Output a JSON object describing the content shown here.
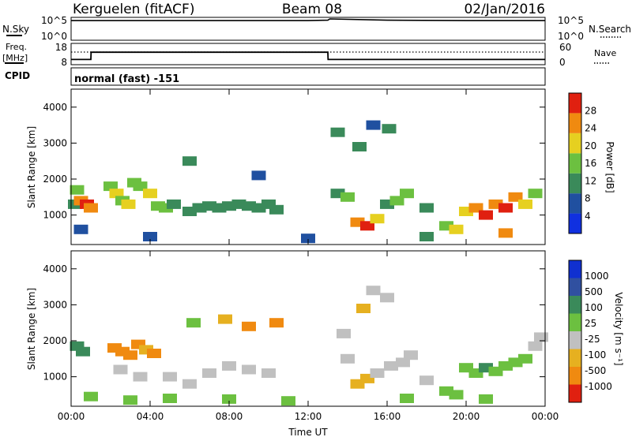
{
  "header": {
    "station": "Kerguelen (fitACF)",
    "beam": "Beam 08",
    "date": "02/Jan/2016"
  },
  "top_panels": {
    "sky_label": "N.Sky",
    "search_label": "N.Search",
    "sky_ticks": [
      "10^5",
      "10^0"
    ],
    "search_ticks": [
      "10^5",
      "10^0"
    ],
    "freq_label_1": "Freq.",
    "freq_label_2": "[MHz]",
    "freq_ticks": [
      "18",
      "8"
    ],
    "nave_label": "Nave",
    "nave_ticks": [
      "60",
      "0"
    ],
    "cpid_label": "CPID",
    "cpid_value": "normal (fast) -151"
  },
  "axes": {
    "ylabel": "Slant Range [km]",
    "xlabel": "Time UT",
    "y_ticks": [
      "1000",
      "2000",
      "3000",
      "4000"
    ],
    "x_ticks": [
      "00:00",
      "04:00",
      "08:00",
      "12:00",
      "16:00",
      "20:00",
      "00:00"
    ]
  },
  "colorbars": {
    "power": {
      "label": "Power [dB]",
      "ticks": [
        "4",
        "8",
        "12",
        "16",
        "20",
        "24",
        "28"
      ],
      "colors": [
        "#1030e0",
        "#2050a0",
        "#3a8a5a",
        "#6cc040",
        "#e6d020",
        "#f08a10",
        "#e02010"
      ]
    },
    "velocity": {
      "label": "Velocity [m s⁻¹]",
      "ticks": [
        "1000",
        "500",
        "100",
        "25",
        "-25",
        "-100",
        "-500",
        "-1000"
      ],
      "colors": [
        "#1030d0",
        "#3050a0",
        "#3a8a5a",
        "#6cc040",
        "#c0c0c0",
        "#e6b020",
        "#f08a10",
        "#e02010"
      ]
    }
  },
  "chart_data": [
    {
      "type": "line",
      "title": "N.Sky / N.Search",
      "x": [
        0,
        1,
        2,
        4,
        8,
        12,
        13,
        13.1,
        16,
        20,
        24
      ],
      "series": [
        {
          "name": "N.Sky",
          "values": [
            4.6,
            4.6,
            4.6,
            4.6,
            4.6,
            4.6,
            4.7,
            5.0,
            4.7,
            4.6,
            4.6
          ]
        }
      ],
      "ylim": [
        0,
        5
      ]
    },
    {
      "type": "line",
      "title": "Freq. / Nave",
      "x": [
        0,
        1,
        1.01,
        13,
        13.01,
        24
      ],
      "series": [
        {
          "name": "Freq.",
          "values": [
            10,
            10,
            14,
            14,
            10,
            10
          ]
        },
        {
          "name": "Nave",
          "values": [
            48,
            48,
            48,
            48,
            48,
            48
          ]
        }
      ],
      "ylim": [
        8,
        18
      ]
    },
    {
      "type": "heatmap",
      "title": "Power [dB]",
      "xlabel": "Time UT",
      "ylabel": "Slant Range [km]",
      "xlim": [
        0,
        24
      ],
      "ylim": [
        180,
        4500
      ],
      "cells": [
        [
          0.2,
          1300,
          2
        ],
        [
          0.5,
          1400,
          5
        ],
        [
          0.8,
          1300,
          6
        ],
        [
          1.0,
          1200,
          5
        ],
        [
          0.3,
          1700,
          3
        ],
        [
          2.0,
          1800,
          3
        ],
        [
          2.3,
          1600,
          4
        ],
        [
          2.6,
          1400,
          3
        ],
        [
          2.9,
          1300,
          4
        ],
        [
          3.2,
          1900,
          3
        ],
        [
          3.5,
          1800,
          3
        ],
        [
          4.0,
          1600,
          4
        ],
        [
          4.4,
          1250,
          3
        ],
        [
          4.8,
          1200,
          3
        ],
        [
          5.2,
          1300,
          2
        ],
        [
          6.0,
          1100,
          2
        ],
        [
          6.5,
          1200,
          2
        ],
        [
          7.0,
          1250,
          2
        ],
        [
          7.5,
          1200,
          2
        ],
        [
          8.0,
          1250,
          2
        ],
        [
          8.5,
          1300,
          2
        ],
        [
          9.0,
          1250,
          2
        ],
        [
          9.5,
          1200,
          2
        ],
        [
          10.0,
          1300,
          2
        ],
        [
          10.4,
          1150,
          2
        ],
        [
          13.5,
          1600,
          2
        ],
        [
          14.0,
          1500,
          3
        ],
        [
          14.5,
          800,
          5
        ],
        [
          15.0,
          700,
          6
        ],
        [
          15.5,
          900,
          4
        ],
        [
          16.0,
          1300,
          2
        ],
        [
          16.5,
          1400,
          3
        ],
        [
          17.0,
          1600,
          3
        ],
        [
          18.0,
          1200,
          2
        ],
        [
          19.0,
          700,
          3
        ],
        [
          19.5,
          600,
          4
        ],
        [
          20.0,
          1100,
          4
        ],
        [
          20.5,
          1200,
          5
        ],
        [
          21.0,
          1000,
          6
        ],
        [
          21.5,
          1300,
          5
        ],
        [
          22.0,
          1200,
          6
        ],
        [
          22.5,
          1500,
          5
        ],
        [
          23.0,
          1300,
          4
        ],
        [
          23.5,
          1600,
          3
        ],
        [
          22.0,
          500,
          5
        ],
        [
          13.5,
          3300,
          2
        ],
        [
          14.6,
          2900,
          2
        ],
        [
          15.3,
          3500,
          1
        ],
        [
          16.1,
          3400,
          2
        ],
        [
          6.0,
          2500,
          2
        ],
        [
          9.5,
          2100,
          1
        ],
        [
          0.5,
          600,
          1
        ],
        [
          4.0,
          400,
          1
        ],
        [
          12.0,
          350,
          1
        ],
        [
          18.0,
          400,
          2
        ]
      ]
    },
    {
      "type": "heatmap",
      "title": "Velocity [m s-1]",
      "xlabel": "Time UT",
      "ylabel": "Slant Range [km]",
      "xlim": [
        0,
        24
      ],
      "ylim": [
        180,
        4500
      ],
      "cells": [
        [
          0.3,
          1850,
          2
        ],
        [
          0.6,
          1700,
          2
        ],
        [
          2.2,
          1800,
          6
        ],
        [
          2.6,
          1700,
          6
        ],
        [
          3.0,
          1600,
          6
        ],
        [
          3.4,
          1900,
          6
        ],
        [
          3.8,
          1750,
          5
        ],
        [
          4.2,
          1650,
          6
        ],
        [
          2.5,
          1200,
          4
        ],
        [
          3.5,
          1000,
          4
        ],
        [
          5.0,
          1000,
          4
        ],
        [
          6.0,
          800,
          4
        ],
        [
          7.0,
          1100,
          4
        ],
        [
          8.0,
          1300,
          4
        ],
        [
          9.0,
          1200,
          4
        ],
        [
          10.0,
          1100,
          4
        ],
        [
          14.0,
          1500,
          4
        ],
        [
          14.5,
          800,
          5
        ],
        [
          15.0,
          950,
          5
        ],
        [
          15.5,
          1100,
          4
        ],
        [
          16.2,
          1300,
          4
        ],
        [
          16.8,
          1400,
          4
        ],
        [
          17.2,
          1600,
          4
        ],
        [
          18.0,
          900,
          4
        ],
        [
          19.0,
          600,
          3
        ],
        [
          20.0,
          1250,
          3
        ],
        [
          20.5,
          1100,
          3
        ],
        [
          21.0,
          1250,
          2
        ],
        [
          21.5,
          1150,
          3
        ],
        [
          22.0,
          1300,
          3
        ],
        [
          22.5,
          1400,
          3
        ],
        [
          23.0,
          1500,
          3
        ],
        [
          23.5,
          1850,
          4
        ],
        [
          23.8,
          2100,
          4
        ],
        [
          19.5,
          500,
          3
        ],
        [
          13.8,
          2200,
          4
        ],
        [
          14.8,
          2900,
          5
        ],
        [
          15.3,
          3400,
          4
        ],
        [
          16.0,
          3200,
          4
        ],
        [
          6.2,
          2500,
          3
        ],
        [
          7.8,
          2600,
          5
        ],
        [
          9.0,
          2400,
          6
        ],
        [
          10.4,
          2500,
          6
        ],
        [
          1.0,
          450,
          3
        ],
        [
          3.0,
          350,
          3
        ],
        [
          5.0,
          400,
          3
        ],
        [
          8.0,
          380,
          3
        ],
        [
          11.0,
          330,
          3
        ],
        [
          17.0,
          400,
          3
        ],
        [
          21.0,
          380,
          3
        ]
      ]
    }
  ]
}
